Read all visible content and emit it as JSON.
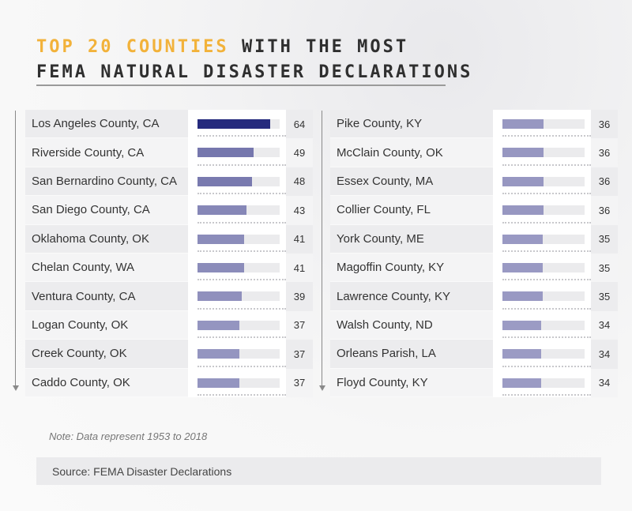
{
  "title": {
    "accent": "TOP 20 COUNTIES",
    "rest": "WITH THE MOST",
    "line2": "FEMA NATURAL DISASTER DECLARATIONS"
  },
  "note": "Note: Data represent 1953 to 2018",
  "source": "Source: FEMA Disaster Declarations",
  "colors": {
    "accent": "#f2b23a",
    "bar_dark": "#252a7d",
    "bar_light": "#9b9bc4"
  },
  "chart_data": {
    "type": "bar",
    "orientation": "horizontal",
    "categories": [
      "Los Angeles County, CA",
      "Riverside County, CA",
      "San Bernardino County, CA",
      "San Diego County, CA",
      "Oklahoma County, OK",
      "Chelan County, WA",
      "Ventura County, CA",
      "Logan County, OK",
      "Creek County, OK",
      "Caddo County, OK",
      "Pike County, KY",
      "McClain County, OK",
      "Essex County, MA",
      "Collier County, FL",
      "York County, ME",
      "Magoffin County, KY",
      "Lawrence County, KY",
      "Walsh County, ND",
      "Orleans Parish, LA",
      "Floyd County, KY"
    ],
    "values": [
      64,
      49,
      48,
      43,
      41,
      41,
      39,
      37,
      37,
      37,
      36,
      36,
      36,
      36,
      35,
      35,
      35,
      34,
      34,
      34
    ],
    "xlim": [
      0,
      72
    ]
  }
}
